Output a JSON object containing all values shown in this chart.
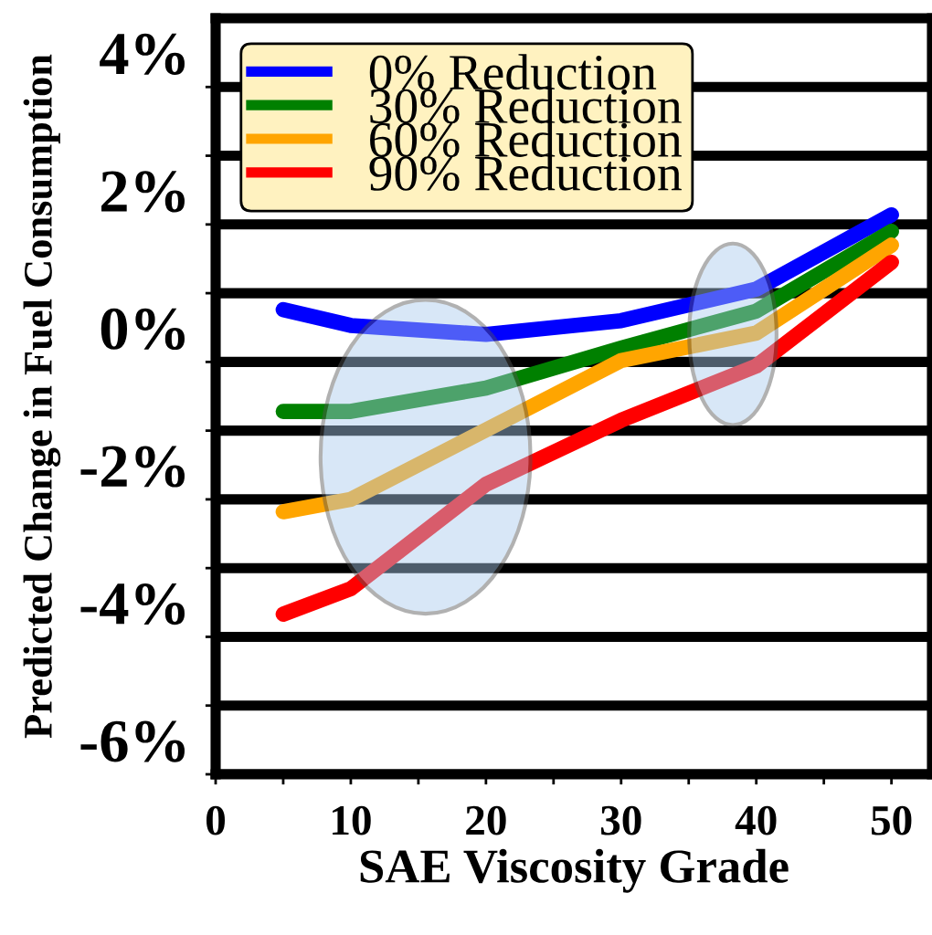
{
  "chart_data": {
    "type": "line",
    "xlabel": "SAE Viscosity Grade",
    "ylabel": "Predicted Change in Fuel Consumption",
    "x": [
      5,
      10,
      20,
      30,
      40,
      50
    ],
    "series": [
      {
        "name": "0% Reduction",
        "color": "#0000ff",
        "values": [
          0.76,
          0.53,
          0.4,
          0.6,
          1.06,
          2.14
        ]
      },
      {
        "name": "30% Reduction",
        "color": "#008000",
        "values": [
          -0.72,
          -0.72,
          -0.38,
          0.2,
          0.74,
          1.9
        ]
      },
      {
        "name": "60% Reduction",
        "color": "#ffa500",
        "values": [
          -2.18,
          -2.0,
          -0.99,
          0.02,
          0.42,
          1.7
        ]
      },
      {
        "name": "90% Reduction",
        "color": "#ff0000",
        "values": [
          -3.67,
          -3.3,
          -1.78,
          -0.85,
          -0.06,
          1.45
        ]
      }
    ],
    "xlim": [
      0,
      53
    ],
    "xticks": [
      0,
      {
        "value": 5,
        "label": null
      },
      10,
      {
        "value": 15,
        "label": null
      },
      20,
      {
        "value": 25,
        "label": null
      },
      30,
      {
        "value": 35,
        "label": null
      },
      40,
      {
        "value": 45,
        "label": null
      },
      50
    ],
    "ylim": [
      -6,
      5
    ],
    "yticks": [
      {
        "value": -6,
        "label": "-6%"
      },
      {
        "value": -5,
        "label": null
      },
      {
        "value": -4,
        "label": "-4%"
      },
      {
        "value": -3,
        "label": null
      },
      {
        "value": -2,
        "label": "-2%"
      },
      {
        "value": -1,
        "label": null
      },
      {
        "value": 0,
        "label": "0%"
      },
      {
        "value": 1,
        "label": null
      },
      {
        "value": 2,
        "label": "2%"
      },
      {
        "value": 3,
        "label": null
      },
      {
        "value": 4,
        "label": "4%"
      }
    ],
    "grid": "y",
    "legend": "top left",
    "marker": "none",
    "line_style": "solid"
  }
}
